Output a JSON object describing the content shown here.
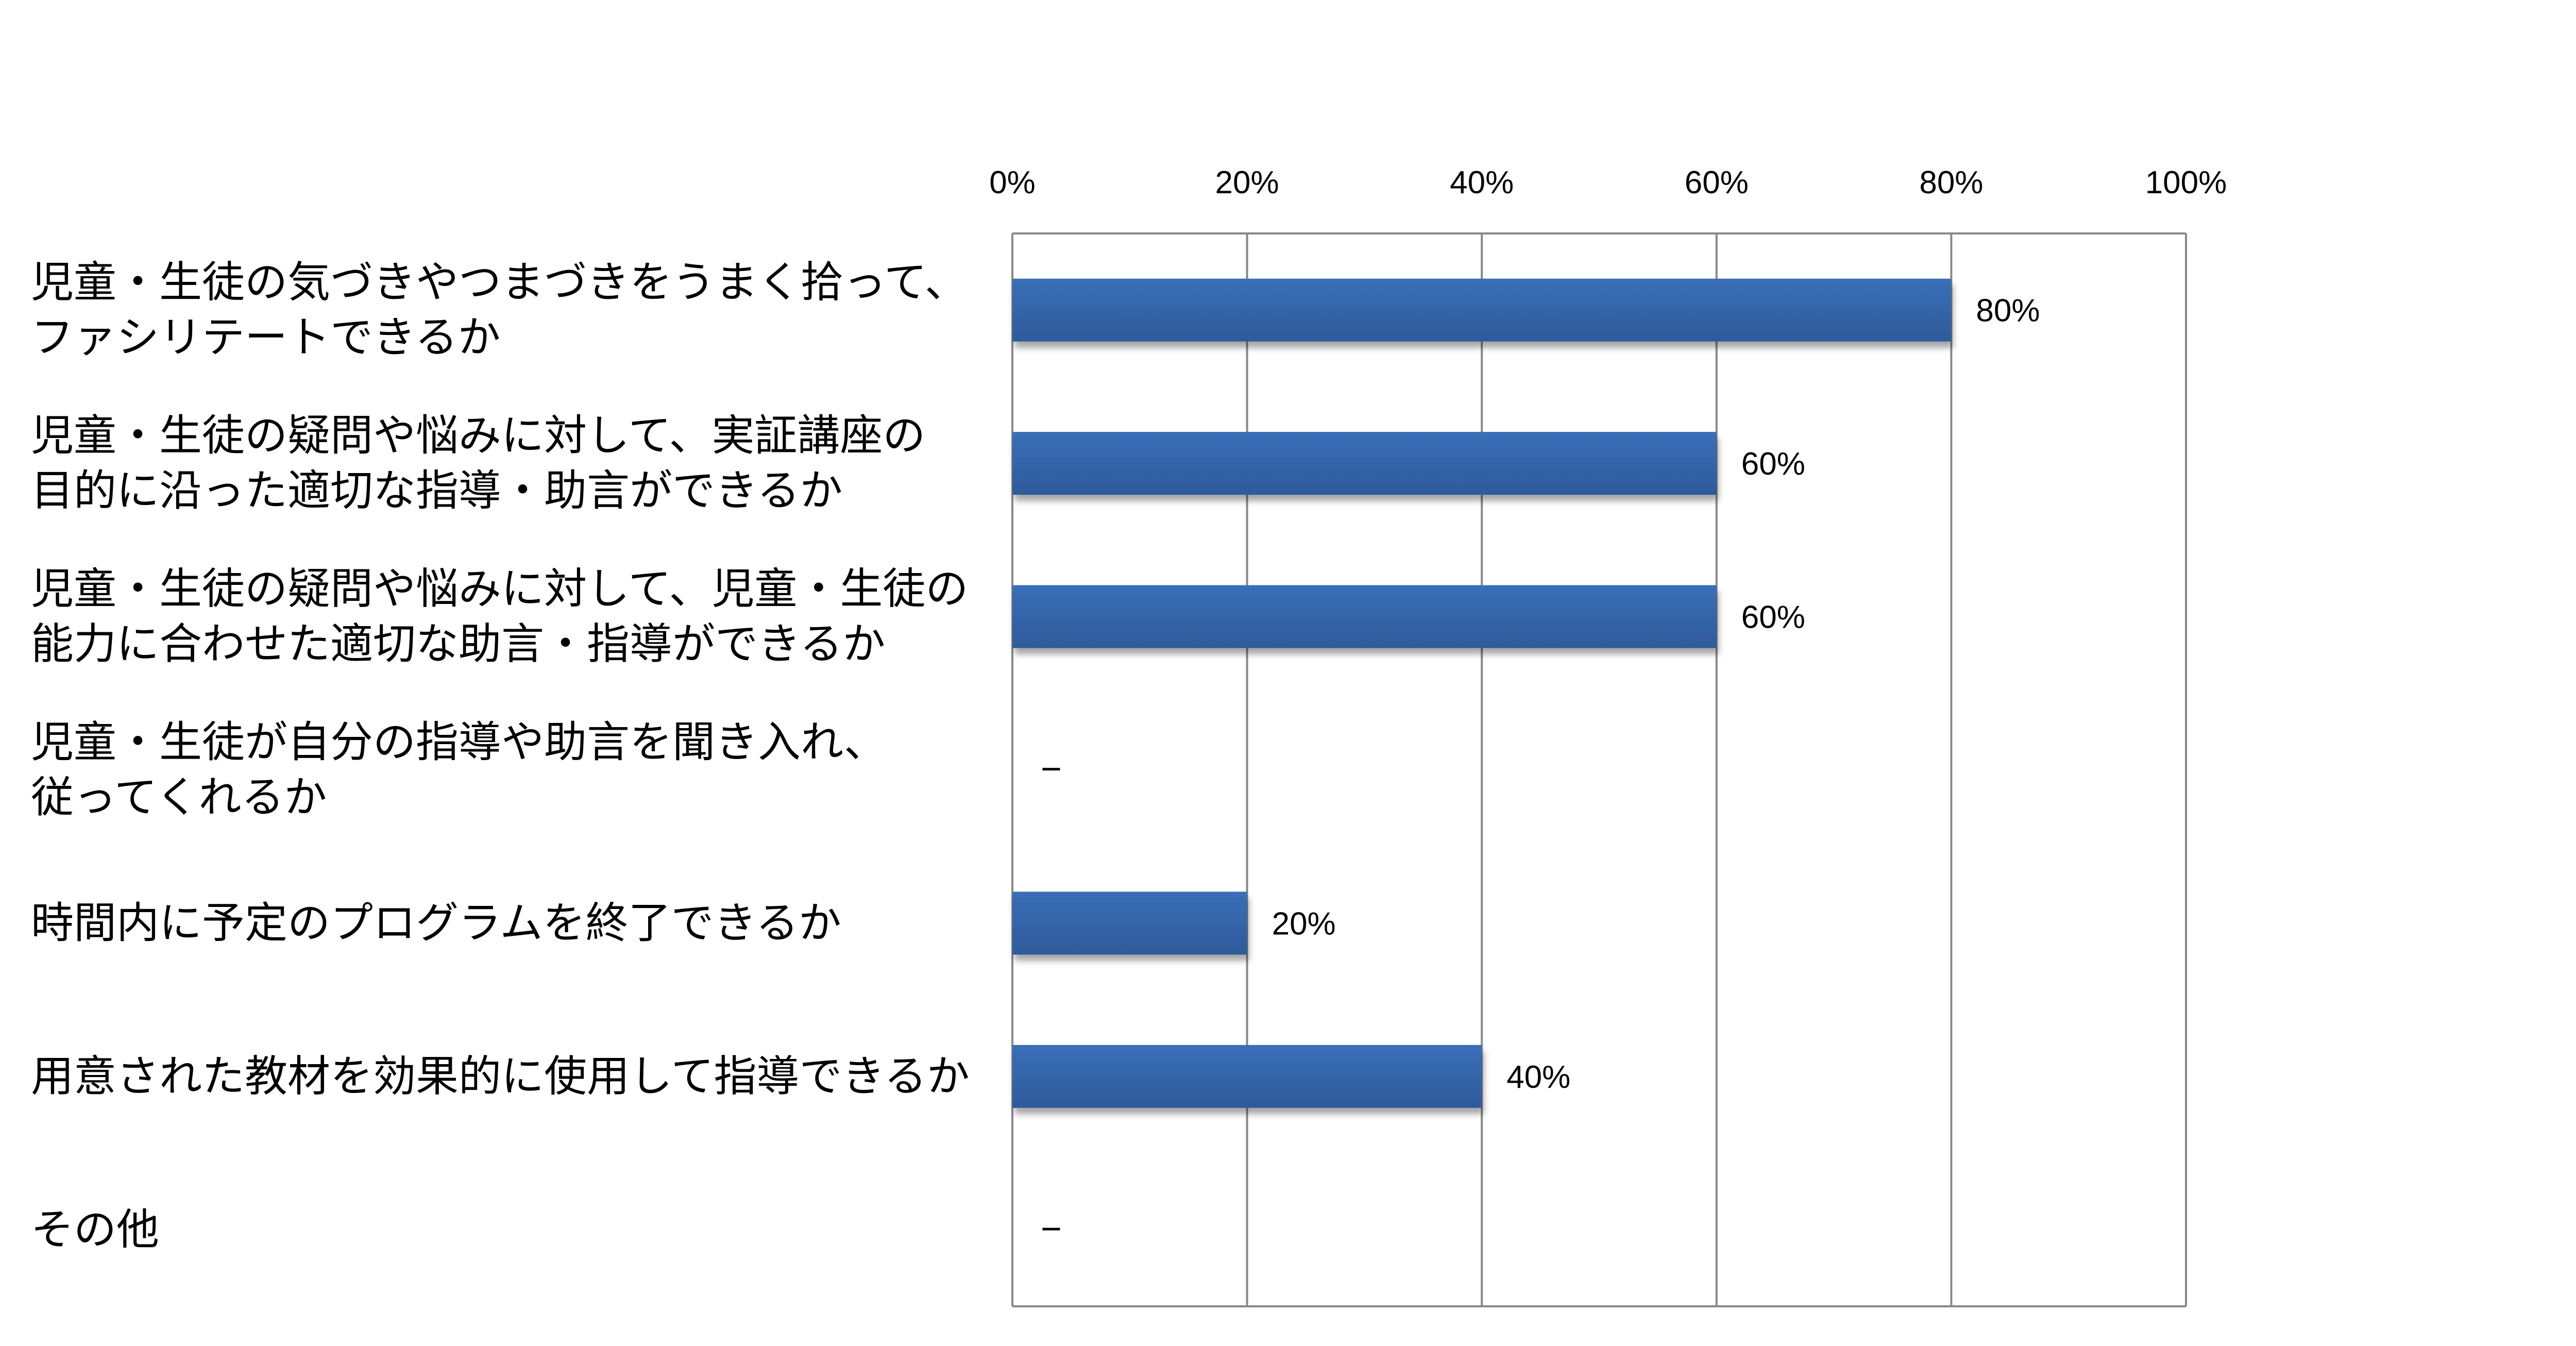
{
  "chart_data": {
    "type": "bar",
    "orientation": "horizontal",
    "categories": [
      [
        "児童・生徒の気づきやつまづきをうまく拾って、",
        "ファシリテートできるか"
      ],
      [
        "児童・生徒の疑問や悩みに対して、実証講座の",
        "目的に沿った適切な指導・助言ができるか"
      ],
      [
        "児童・生徒の疑問や悩みに対して、児童・生徒の",
        "能力に合わせた適切な助言・指導ができるか"
      ],
      [
        "児童・生徒が自分の指導や助言を聞き入れ、",
        "従ってくれるか"
      ],
      [
        "時間内に予定のプログラムを終了できるか"
      ],
      [
        "用意された教材を効果的に使用して指導できるか"
      ],
      [
        "その他"
      ]
    ],
    "values": [
      80,
      60,
      60,
      null,
      20,
      40,
      null
    ],
    "value_labels": [
      "80%",
      "60%",
      "60%",
      "−",
      "20%",
      "40%",
      "−"
    ],
    "xlim": [
      0,
      100
    ],
    "x_ticks": [
      0,
      20,
      40,
      60,
      80,
      100
    ],
    "x_tick_labels": [
      "0%",
      "20%",
      "40%",
      "60%",
      "80%",
      "100%"
    ],
    "x_axis_position": "top",
    "grid": true,
    "legend": "none",
    "bar_color": "#3A6FB8",
    "bar_color_dark": "#2E5A9A",
    "grid_color": "#888888",
    "title": "",
    "xlabel": "",
    "ylabel": ""
  }
}
